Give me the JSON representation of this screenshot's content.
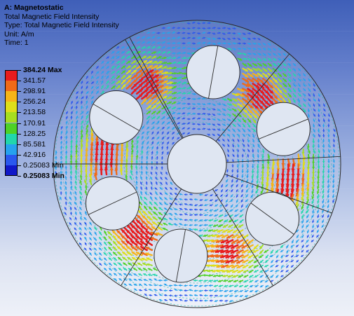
{
  "header": {
    "title": "A: Magnetostatic",
    "result": "Total Magnetic Field Intensity",
    "type_line": "Type: Total Magnetic Field Intensity",
    "unit_line": "Unit: A/m",
    "time_line": "Time: 1"
  },
  "legend": {
    "labels": [
      "384.24 Max",
      "341.57",
      "298.91",
      "256.24",
      "213.58",
      "170.91",
      "128.25",
      "85.581",
      "42.916",
      "0.25083 Min"
    ],
    "colors": [
      "#e81c1c",
      "#f06a18",
      "#f6b418",
      "#dede1a",
      "#a6de20",
      "#4ed226",
      "#22d6ac",
      "#26a2ee",
      "#2a58ee",
      "#1018c8"
    ]
  },
  "colors": {
    "background_top": "#3f5fb8",
    "background_bottom": "#eef1f8",
    "outline": "#2a2a2a",
    "arrow_low": "#2bb7b0"
  }
}
